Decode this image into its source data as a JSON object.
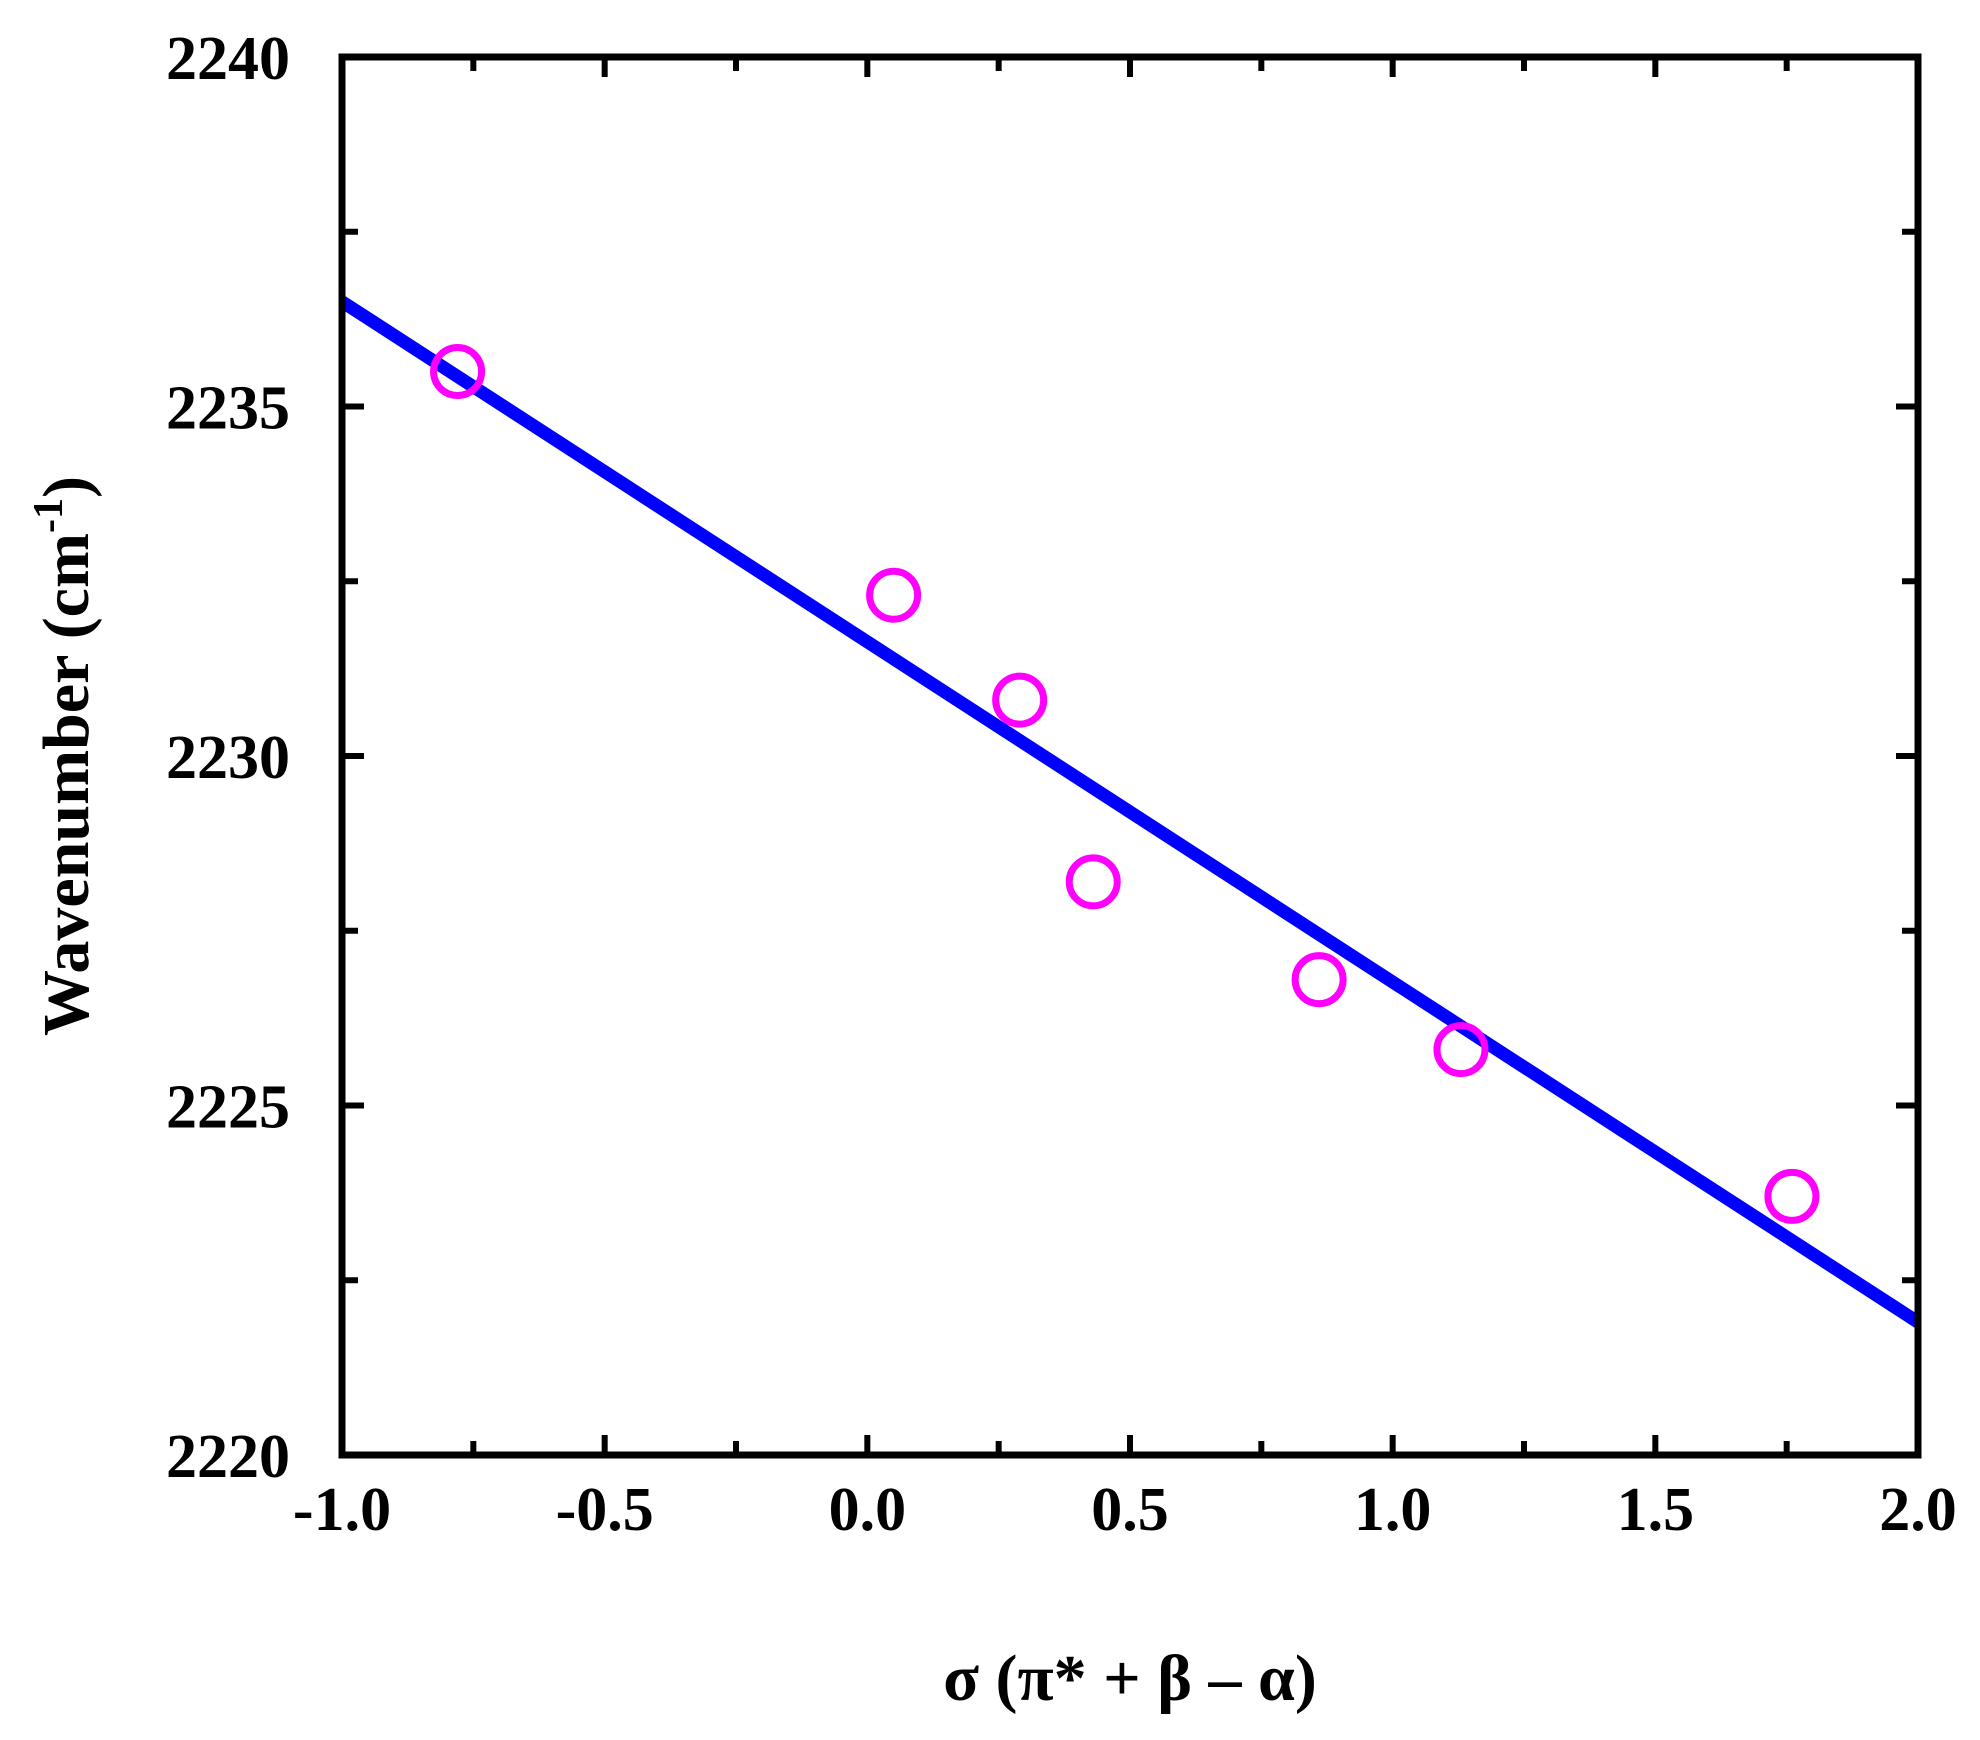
{
  "chart_data": {
    "type": "scatter",
    "title": "",
    "xlabel": "σ (π* + β – α)",
    "ylabel": "Wavenumber (cm-1)",
    "ylabel_parts": {
      "main": "Wavenumber (cm",
      "sup": "-1",
      "close": ")"
    },
    "xlim": [
      -1.0,
      2.0
    ],
    "ylim": [
      2220,
      2240
    ],
    "xticks": [
      "-1.0",
      "-0.5",
      "0.0",
      "0.5",
      "1.0",
      "1.5",
      "2.0"
    ],
    "yticks": [
      "2220",
      "2225",
      "2230",
      "2235",
      "2240"
    ],
    "grid": false,
    "legend": null,
    "series": [
      {
        "name": "data",
        "kind": "scatter",
        "marker": "open-circle",
        "color": "#ff00ff",
        "x": [
          -0.78,
          0.05,
          0.29,
          0.43,
          0.86,
          1.13,
          1.76
        ],
        "y": [
          2235.5,
          2232.3,
          2230.8,
          2228.2,
          2226.8,
          2225.8,
          2223.7
        ]
      },
      {
        "name": "linear fit",
        "kind": "line",
        "color": "#0000ff",
        "x": [
          -1.0,
          2.0
        ],
        "y": [
          2236.5,
          2221.9
        ]
      }
    ]
  },
  "colors": {
    "axis": "#000000",
    "marker": "#ff00ff",
    "fit": "#0000ff",
    "background": "#ffffff"
  }
}
